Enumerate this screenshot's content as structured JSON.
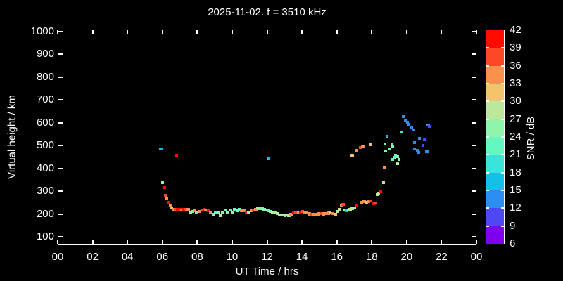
{
  "chart_data": {
    "type": "scatter",
    "title": "2025-11-02. f = 3510 kHz",
    "xlabel": "UT Time / hrs",
    "ylabel": "Virtual height / km",
    "colorbar_label": "SNR / dB",
    "background": "#000000",
    "frame_color": "#ffffff",
    "xlim": [
      0,
      24
    ],
    "x_tick_hours": [
      0,
      2,
      4,
      6,
      8,
      10,
      12,
      14,
      16,
      18,
      20,
      22,
      24
    ],
    "x_tick_labels": [
      "00",
      "02",
      "04",
      "06",
      "08",
      "10",
      "12",
      "14",
      "16",
      "18",
      "20",
      "22",
      "00"
    ],
    "y_ticks": [
      100,
      200,
      300,
      400,
      500,
      600,
      700,
      800,
      900,
      1000
    ],
    "ylim": [
      63,
      1009
    ],
    "grid": false,
    "legend_position": "right-colorbar",
    "colorbar": {
      "min": 6,
      "max": 42,
      "step": 3,
      "tick_labels": [
        42,
        39,
        36,
        33,
        30,
        27,
        24,
        21,
        18,
        15,
        12,
        9,
        6
      ],
      "bin_colors_low_to_high": [
        "#7F00EF",
        "#4E47F4",
        "#2A8FF1",
        "#13C0E8",
        "#3BE4DA",
        "#64F7BF",
        "#8FF5AA",
        "#BBE89B",
        "#F2C46B",
        "#F9914D",
        "#FB4826",
        "#FF0B00"
      ]
    },
    "points_format": [
      "ut_hours",
      "virtual_height_km",
      "snr_db"
    ],
    "points": [
      [
        5.9,
        485,
        16
      ],
      [
        6.02,
        337,
        25
      ],
      [
        6.14,
        316,
        40
      ],
      [
        6.18,
        282,
        37
      ],
      [
        6.26,
        270,
        34
      ],
      [
        6.35,
        251,
        40
      ],
      [
        6.47,
        239,
        34
      ],
      [
        6.51,
        226,
        31
      ],
      [
        6.63,
        220,
        34
      ],
      [
        6.75,
        220,
        37
      ],
      [
        6.79,
        458,
        40
      ],
      [
        6.87,
        220,
        40
      ],
      [
        7.0,
        220,
        40
      ],
      [
        7.12,
        217,
        34
      ],
      [
        7.24,
        220,
        40
      ],
      [
        7.36,
        220,
        37
      ],
      [
        7.48,
        220,
        34
      ],
      [
        7.61,
        205,
        25
      ],
      [
        7.73,
        211,
        25
      ],
      [
        7.85,
        214,
        34
      ],
      [
        7.97,
        208,
        22
      ],
      [
        8.1,
        211,
        34
      ],
      [
        8.26,
        217,
        37
      ],
      [
        8.38,
        220,
        40
      ],
      [
        8.5,
        217,
        34
      ],
      [
        8.63,
        214,
        40
      ],
      [
        8.75,
        205,
        34
      ],
      [
        8.91,
        199,
        25
      ],
      [
        9.03,
        205,
        22
      ],
      [
        9.19,
        208,
        25
      ],
      [
        9.31,
        193,
        28
      ],
      [
        9.44,
        208,
        25
      ],
      [
        9.6,
        217,
        22
      ],
      [
        9.72,
        208,
        25
      ],
      [
        9.88,
        217,
        22
      ],
      [
        10.01,
        208,
        25
      ],
      [
        10.13,
        220,
        22
      ],
      [
        10.29,
        214,
        22
      ],
      [
        10.41,
        220,
        22
      ],
      [
        10.54,
        214,
        34
      ],
      [
        10.7,
        214,
        34
      ],
      [
        10.82,
        208,
        40
      ],
      [
        10.94,
        205,
        25
      ],
      [
        11.1,
        214,
        34
      ],
      [
        11.23,
        217,
        37
      ],
      [
        11.35,
        220,
        34
      ],
      [
        11.47,
        226,
        28
      ],
      [
        11.59,
        223,
        25
      ],
      [
        11.72,
        223,
        22
      ],
      [
        11.84,
        220,
        25
      ],
      [
        11.96,
        217,
        25
      ],
      [
        12.08,
        214,
        22
      ],
      [
        12.1,
        442,
        16
      ],
      [
        12.2,
        211,
        25
      ],
      [
        12.33,
        205,
        28
      ],
      [
        12.49,
        205,
        25
      ],
      [
        12.61,
        202,
        28
      ],
      [
        12.73,
        196,
        28
      ],
      [
        12.86,
        196,
        25
      ],
      [
        13.02,
        193,
        28
      ],
      [
        13.14,
        196,
        25
      ],
      [
        13.26,
        193,
        28
      ],
      [
        13.38,
        199,
        34
      ],
      [
        13.51,
        205,
        40
      ],
      [
        13.63,
        208,
        37
      ],
      [
        13.79,
        208,
        34
      ],
      [
        13.91,
        208,
        40
      ],
      [
        14.03,
        211,
        37
      ],
      [
        14.16,
        208,
        34
      ],
      [
        14.28,
        205,
        34
      ],
      [
        14.44,
        200,
        34
      ],
      [
        14.56,
        198,
        37
      ],
      [
        14.68,
        197,
        34
      ],
      [
        14.85,
        199,
        34
      ],
      [
        14.97,
        200,
        34
      ],
      [
        15.09,
        202,
        37
      ],
      [
        15.25,
        200,
        34
      ],
      [
        15.38,
        201,
        34
      ],
      [
        15.5,
        203,
        34
      ],
      [
        15.62,
        205,
        31
      ],
      [
        15.78,
        202,
        34
      ],
      [
        15.91,
        199,
        31
      ],
      [
        16.03,
        211,
        28
      ],
      [
        16.15,
        220,
        28
      ],
      [
        16.27,
        236,
        34
      ],
      [
        16.35,
        242,
        37
      ],
      [
        16.47,
        217,
        25
      ],
      [
        16.56,
        214,
        16
      ],
      [
        16.68,
        217,
        25
      ],
      [
        16.76,
        220,
        28
      ],
      [
        16.88,
        223,
        28
      ],
      [
        17.0,
        226,
        25
      ],
      [
        17.13,
        236,
        40
      ],
      [
        16.88,
        458,
        31
      ],
      [
        17.13,
        477,
        34
      ],
      [
        17.37,
        492,
        37
      ],
      [
        17.49,
        495,
        34
      ],
      [
        17.94,
        504,
        31
      ],
      [
        17.41,
        251,
        34
      ],
      [
        17.57,
        254,
        34
      ],
      [
        17.69,
        251,
        31
      ],
      [
        17.82,
        254,
        34
      ],
      [
        17.94,
        257,
        37
      ],
      [
        18.1,
        245,
        40
      ],
      [
        18.22,
        248,
        37
      ],
      [
        18.31,
        285,
        28
      ],
      [
        18.39,
        291,
        28
      ],
      [
        18.51,
        297,
        40
      ],
      [
        18.67,
        337,
        28
      ],
      [
        18.71,
        405,
        34
      ],
      [
        18.88,
        541,
        16
      ],
      [
        18.75,
        507,
        22
      ],
      [
        19.16,
        504,
        22
      ],
      [
        19.2,
        495,
        25
      ],
      [
        19.04,
        485,
        22
      ],
      [
        18.79,
        476,
        25
      ],
      [
        19.36,
        458,
        22
      ],
      [
        19.28,
        448,
        22
      ],
      [
        19.48,
        451,
        25
      ],
      [
        19.2,
        439,
        22
      ],
      [
        19.57,
        439,
        25
      ],
      [
        19.48,
        421,
        28
      ],
      [
        19.73,
        559,
        19
      ],
      [
        19.81,
        627,
        13
      ],
      [
        19.93,
        612,
        13
      ],
      [
        20.05,
        602,
        13
      ],
      [
        20.13,
        593,
        13
      ],
      [
        20.26,
        578,
        13
      ],
      [
        20.38,
        569,
        13
      ],
      [
        20.46,
        513,
        13
      ],
      [
        20.46,
        485,
        13
      ],
      [
        20.62,
        479,
        13
      ],
      [
        20.7,
        470,
        13
      ],
      [
        20.74,
        532,
        13
      ],
      [
        21.03,
        529,
        10
      ],
      [
        21.15,
        473,
        13
      ],
      [
        21.23,
        590,
        13
      ],
      [
        21.31,
        584,
        10
      ],
      [
        20.94,
        501,
        10
      ]
    ]
  }
}
